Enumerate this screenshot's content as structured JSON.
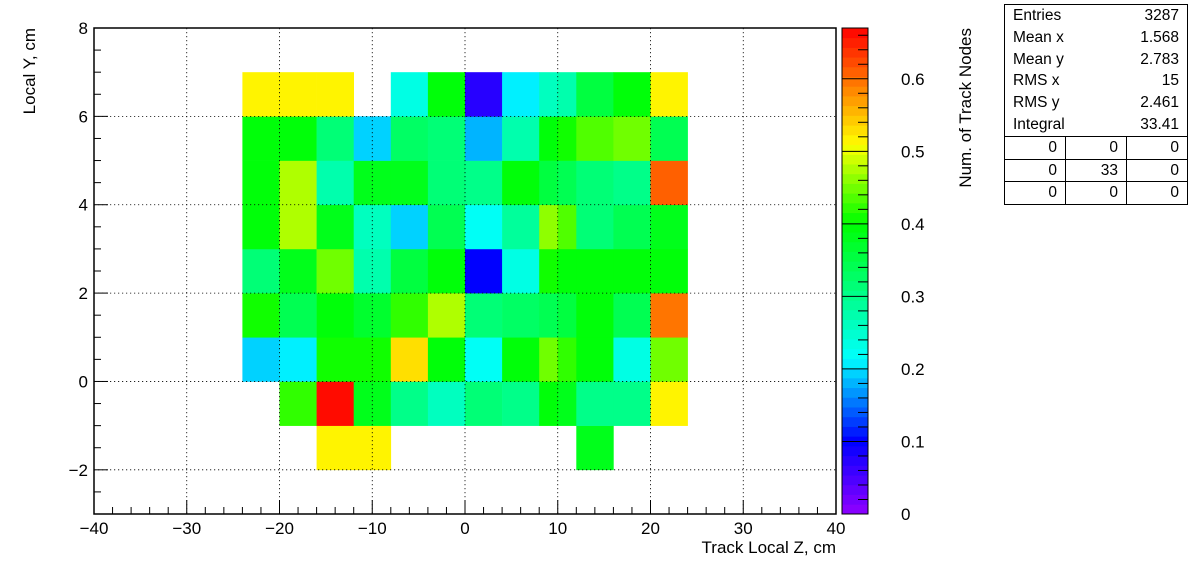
{
  "chart_data": {
    "type": "heatmap",
    "title": "",
    "xlabel": "Track Local Z, cm",
    "ylabel": "Local Y, cm",
    "zlabel": "Num. of Track Nodes",
    "xlim": [
      -40,
      40
    ],
    "ylim": [
      -3,
      8
    ],
    "zlim": [
      0,
      0.67
    ],
    "grid": true,
    "x_ticks": [
      -40,
      -30,
      -20,
      -10,
      0,
      10,
      20,
      30,
      40
    ],
    "y_ticks": [
      -2,
      0,
      2,
      4,
      6,
      8
    ],
    "z_ticks": [
      0,
      0.1,
      0.2,
      0.3,
      0.4,
      0.5,
      0.6
    ],
    "x_tick_labels": [
      "−40",
      "−30",
      "−20",
      "−10",
      "0",
      "10",
      "20",
      "30",
      "40"
    ],
    "y_tick_labels": [
      "−2",
      "0",
      "2",
      "4",
      "6",
      "8"
    ],
    "z_tick_labels": [
      "0",
      "0.1",
      "0.2",
      "0.3",
      "0.4",
      "0.5",
      "0.6"
    ],
    "x_bin_edges": [
      -24,
      -20,
      -16,
      -12,
      -8,
      -4,
      0,
      4,
      8,
      10,
      12,
      16,
      20,
      24
    ],
    "y_bin_edges": [
      -2,
      -1,
      0,
      1,
      2,
      3,
      4,
      5,
      6,
      7
    ],
    "values": [
      [
        null,
        null,
        0.51,
        0.51,
        null,
        null,
        null,
        null,
        null,
        null,
        0.38,
        null,
        null
      ],
      [
        null,
        0.42,
        0.67,
        0.38,
        0.3,
        0.26,
        0.31,
        0.3,
        0.4,
        0.38,
        0.3,
        0.3,
        0.51
      ],
      [
        0.19,
        0.21,
        0.41,
        0.41,
        0.53,
        0.4,
        0.22,
        0.39,
        0.45,
        0.42,
        0.4,
        0.24,
        0.45
      ],
      [
        0.41,
        0.34,
        0.4,
        0.37,
        0.42,
        0.47,
        0.31,
        0.33,
        0.34,
        0.35,
        0.39,
        0.34,
        0.6
      ],
      [
        0.31,
        0.38,
        0.45,
        0.27,
        0.36,
        0.39,
        0.1,
        0.24,
        0.41,
        0.4,
        0.39,
        0.39,
        0.4
      ],
      [
        0.39,
        0.47,
        0.38,
        0.26,
        0.19,
        0.34,
        0.22,
        0.29,
        0.46,
        0.44,
        0.32,
        0.34,
        0.38
      ],
      [
        0.39,
        0.47,
        0.27,
        0.38,
        0.38,
        0.31,
        0.3,
        0.39,
        0.36,
        0.34,
        0.31,
        0.3,
        0.61
      ],
      [
        0.39,
        0.4,
        0.32,
        0.19,
        0.33,
        0.31,
        0.18,
        0.27,
        0.4,
        0.41,
        0.44,
        0.45,
        0.34
      ],
      [
        0.51,
        0.51,
        0.51,
        null,
        0.23,
        0.39,
        0.08,
        0.21,
        0.26,
        0.27,
        0.36,
        0.4,
        0.51
      ]
    ]
  },
  "stats": {
    "rows": [
      {
        "label": "Entries",
        "value": "3287"
      },
      {
        "label": "Mean x",
        "value": "1.568"
      },
      {
        "label": "Mean y",
        "value": "2.783"
      },
      {
        "label": "RMS x",
        "value": "15"
      },
      {
        "label": "RMS y",
        "value": "2.461"
      },
      {
        "label": "Integral",
        "value": "33.41"
      }
    ],
    "grid": [
      [
        "0",
        "0",
        "0"
      ],
      [
        "0",
        "33",
        "0"
      ],
      [
        "0",
        "0",
        "0"
      ]
    ]
  }
}
